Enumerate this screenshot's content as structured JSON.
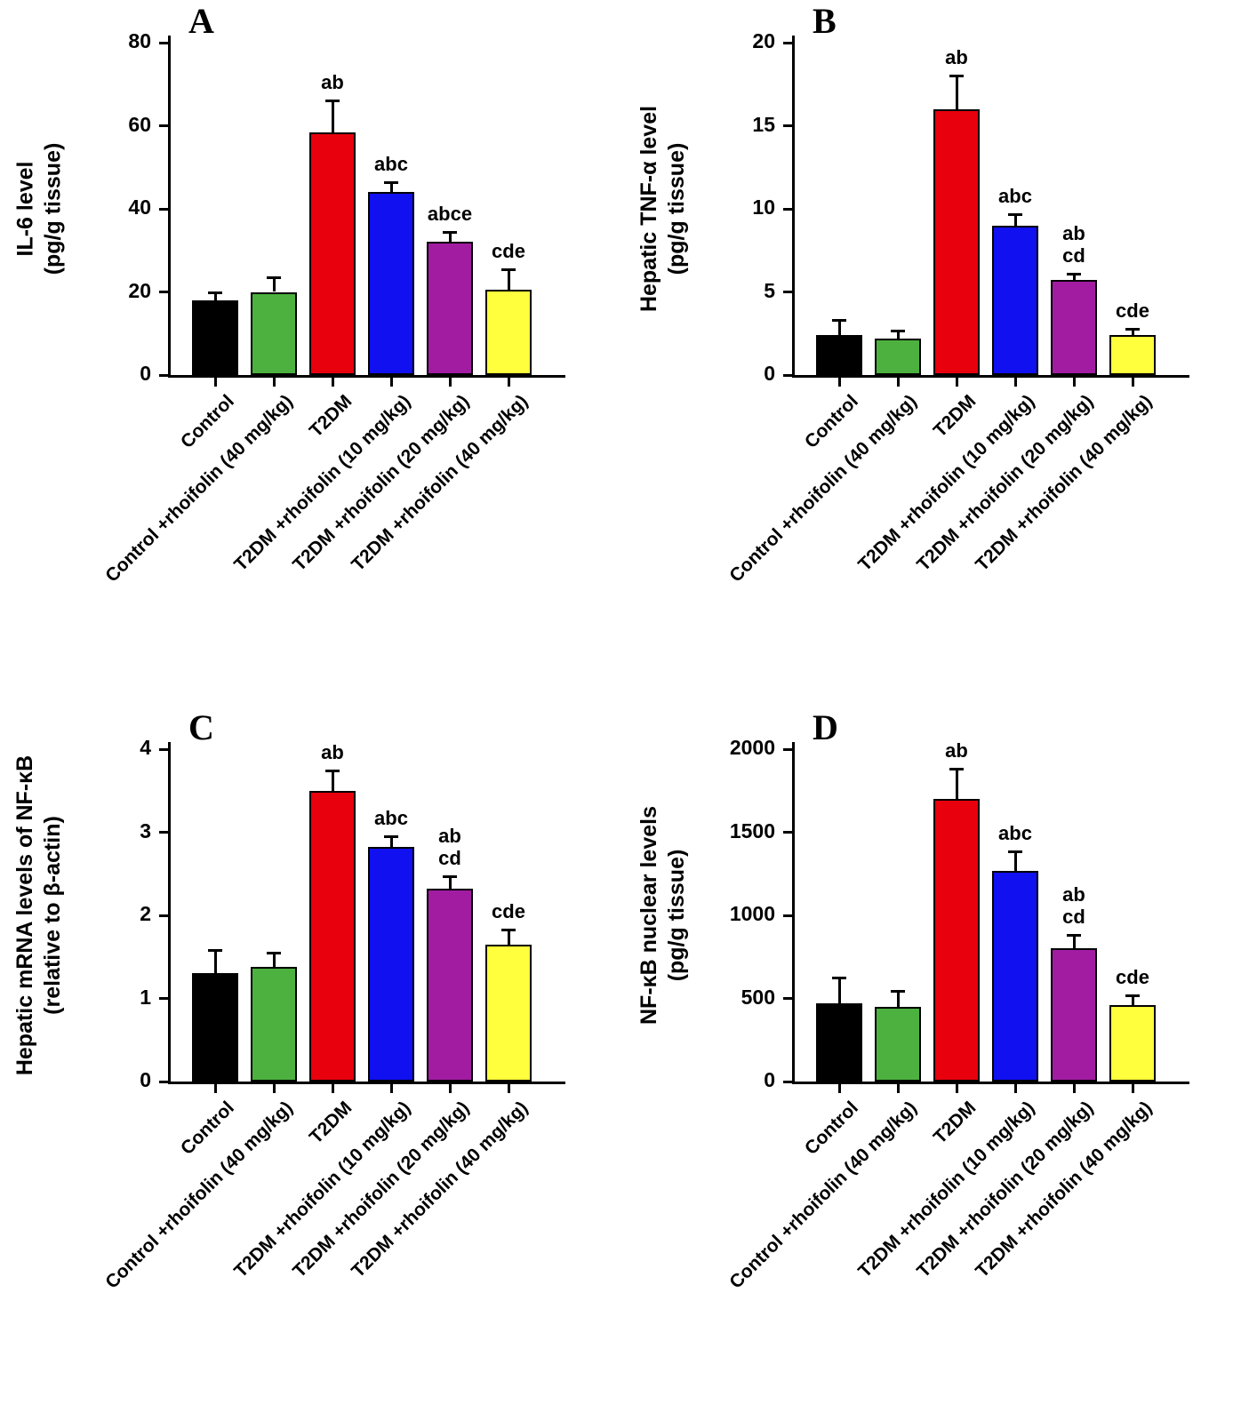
{
  "figure": {
    "panels": [
      "A",
      "B",
      "C",
      "D"
    ]
  },
  "chart_data": [
    {
      "type": "bar",
      "panel": "A",
      "title": "",
      "xlabel": "",
      "ylabel": [
        "IL-6 level",
        "(pg/g tissue)"
      ],
      "ylim": [
        0,
        80
      ],
      "yticks": [
        0,
        20,
        40,
        60,
        80
      ],
      "grid": false,
      "legend": "none",
      "categories": [
        "Control",
        "Control +rhoifolin (40 mg/kg)",
        "T2DM",
        "T2DM +rhoifolin (10 mg/kg)",
        "T2DM +rhoifolin (20 mg/kg)",
        "T2DM +rhoifolin (40 mg/kg)"
      ],
      "colors": [
        "#000000",
        "#4cb13f",
        "#e8000d",
        "#1010f0",
        "#a21ca2",
        "#ffff3d"
      ],
      "values": [
        18,
        20,
        58.5,
        44,
        32,
        20.5
      ],
      "errors": [
        2,
        3.5,
        7.5,
        2.5,
        2.5,
        5
      ],
      "sig": [
        [],
        [],
        [
          "ab"
        ],
        [
          "abc"
        ],
        [
          "abce"
        ],
        [
          "cde"
        ]
      ]
    },
    {
      "type": "bar",
      "panel": "B",
      "title": "",
      "xlabel": "",
      "ylabel": [
        "Hepatic TNF-α level",
        "(pg/g tissue)"
      ],
      "ylim": [
        0,
        20
      ],
      "yticks": [
        0,
        5,
        10,
        15,
        20
      ],
      "grid": false,
      "legend": "none",
      "categories": [
        "Control",
        "Control +rhoifolin (40 mg/kg)",
        "T2DM",
        "T2DM +rhoifolin (10 mg/kg)",
        "T2DM +rhoifolin (20 mg/kg)",
        "T2DM +rhoifolin (40 mg/kg)"
      ],
      "colors": [
        "#000000",
        "#4cb13f",
        "#e8000d",
        "#1010f0",
        "#a21ca2",
        "#ffff3d"
      ],
      "values": [
        2.4,
        2.2,
        16,
        9,
        5.7,
        2.4
      ],
      "errors": [
        0.9,
        0.5,
        2,
        0.7,
        0.4,
        0.4
      ],
      "sig": [
        [],
        [],
        [
          "ab"
        ],
        [
          "abc"
        ],
        [
          "ab",
          "cd"
        ],
        [
          "cde"
        ]
      ]
    },
    {
      "type": "bar",
      "panel": "C",
      "title": "",
      "xlabel": "",
      "ylabel": [
        "Hepatic mRNA levels of NF-κB",
        "(relative to β-actin)"
      ],
      "ylim": [
        0,
        4
      ],
      "yticks": [
        0,
        1,
        2,
        3,
        4
      ],
      "grid": false,
      "legend": "none",
      "categories": [
        "Control",
        "Control +rhoifolin (40 mg/kg)",
        "T2DM",
        "T2DM +rhoifolin (10 mg/kg)",
        "T2DM +rhoifolin (20 mg/kg)",
        "T2DM +rhoifolin (40 mg/kg)"
      ],
      "colors": [
        "#000000",
        "#4cb13f",
        "#e8000d",
        "#1010f0",
        "#a21ca2",
        "#ffff3d"
      ],
      "values": [
        1.3,
        1.38,
        3.5,
        2.82,
        2.32,
        1.65
      ],
      "errors": [
        0.28,
        0.17,
        0.24,
        0.13,
        0.15,
        0.18
      ],
      "sig": [
        [],
        [],
        [
          "ab"
        ],
        [
          "abc"
        ],
        [
          "ab",
          "cd"
        ],
        [
          "cde"
        ]
      ]
    },
    {
      "type": "bar",
      "panel": "D",
      "title": "",
      "xlabel": "",
      "ylabel": [
        "NF-κB nuclear levels",
        "(pg/g tissue)"
      ],
      "ylim": [
        0,
        2000
      ],
      "yticks": [
        0,
        500,
        1000,
        1500,
        2000
      ],
      "grid": false,
      "legend": "none",
      "categories": [
        "Control",
        "Control +rhoifolin (40 mg/kg)",
        "T2DM",
        "T2DM +rhoifolin (10 mg/kg)",
        "T2DM +rhoifolin (20 mg/kg)",
        "T2DM +rhoifolin (40 mg/kg)"
      ],
      "colors": [
        "#000000",
        "#4cb13f",
        "#e8000d",
        "#1010f0",
        "#a21ca2",
        "#ffff3d"
      ],
      "values": [
        470,
        450,
        1700,
        1270,
        800,
        460
      ],
      "errors": [
        155,
        95,
        185,
        115,
        85,
        60
      ],
      "sig": [
        [],
        [],
        [
          "ab"
        ],
        [
          "abc"
        ],
        [
          "ab",
          "cd"
        ],
        [
          "cde"
        ]
      ]
    }
  ]
}
